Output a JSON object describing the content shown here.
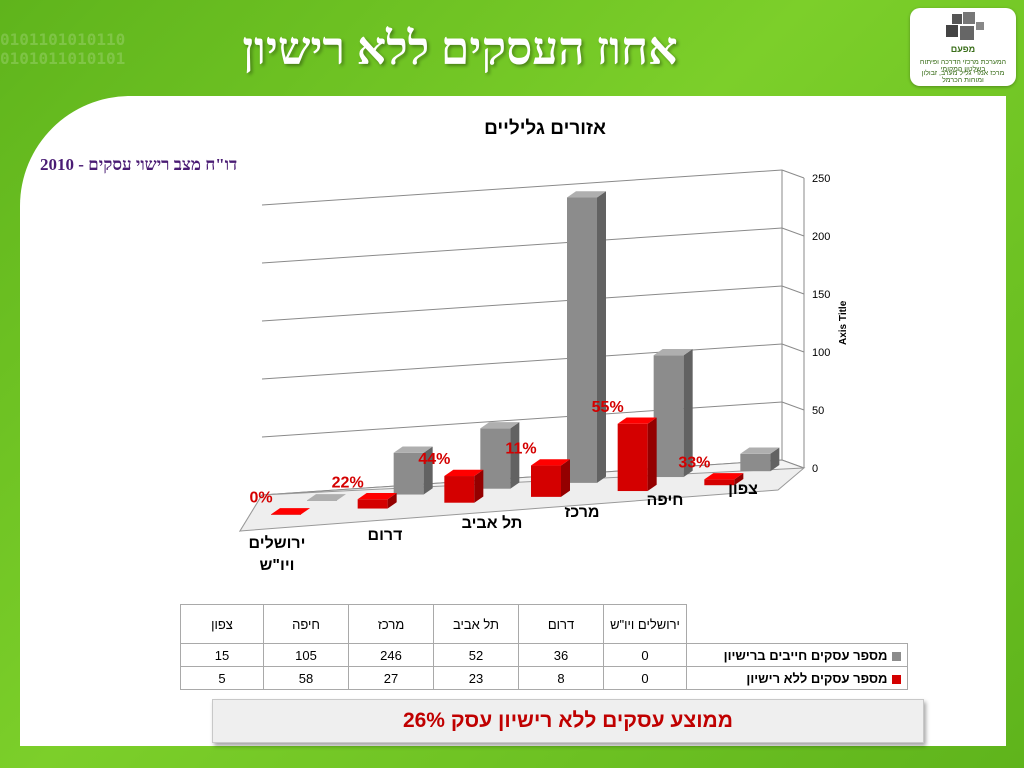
{
  "slide": {
    "title": "אחוז העסקים ללא רישיון",
    "subtitle": "דו\"ח מצב רישוי עסקים - 2010",
    "summary": "ממוצע עסקים ללא רישיון עסק 26%",
    "logo_name": "מפעם",
    "logo_tagline": "המערכת מרכזי הדרכה ופיתוח בשלטון המקומי",
    "logo_tagline2": "מרכז אמרי גליל מערב, זבולון ומוחות הכרמל"
  },
  "chart_data": {
    "type": "bar",
    "title": "אזורים גליליים",
    "ylabel": "Axis Title",
    "ylim": [
      0,
      250
    ],
    "yticks": [
      "0",
      "50",
      "100",
      "150",
      "200",
      "250"
    ],
    "categories": [
      "ירושלים ויו\"ש",
      "דרום",
      "תל אביב",
      "מרכז",
      "חיפה",
      "צפון"
    ],
    "series": [
      {
        "name": "מספר עסקים חייבים ברישיון",
        "color": "#8c8c8c",
        "values": [
          0,
          36,
          52,
          246,
          105,
          15
        ]
      },
      {
        "name": "מספר עסקים ללא רישיון",
        "color": "#d40000",
        "values": [
          0,
          8,
          23,
          27,
          58,
          5
        ]
      }
    ],
    "percent_labels": [
      "0%",
      "22%",
      "44%",
      "11%",
      "55%",
      "33%"
    ],
    "grid": true,
    "legend": "table-below"
  }
}
